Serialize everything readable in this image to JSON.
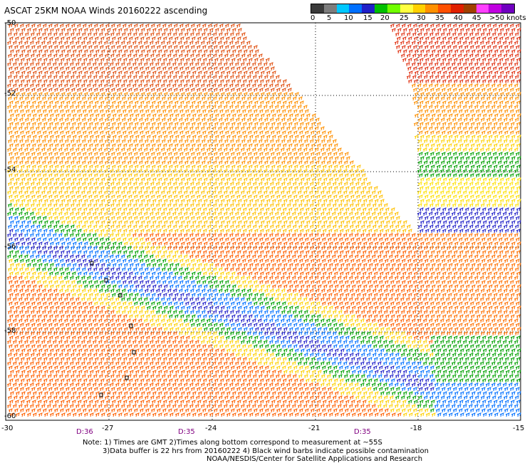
{
  "title": "ASCAT 25KM NOAA Winds 20160222 ascending",
  "colorbar": {
    "colors": [
      "#3a3a3a",
      "#7d7d7d",
      "#00c8ff",
      "#0070ff",
      "#2020c8",
      "#00c000",
      "#70ff00",
      "#ffff40",
      "#ffd000",
      "#ff9000",
      "#ff5000",
      "#e02000",
      "#a04000",
      "#ff40ff",
      "#c000e0",
      "#7000c0"
    ],
    "labels": [
      "0",
      "5",
      "10",
      "15",
      "20",
      "25",
      "30",
      "35",
      "40",
      "45",
      ">50 knots"
    ]
  },
  "lat_labels": [
    "-50",
    "-52",
    "-54",
    "-56",
    "-58",
    "-60"
  ],
  "lon_labels": [
    "-30",
    "-27",
    "-24",
    "-21",
    "-18",
    "-15"
  ],
  "time_labels": [
    "D:36",
    "D:35",
    "D:35"
  ],
  "notes": [
    "Note: 1) Times are GMT 2)Times along bottom correspond to measurement at ~55S",
    "3)Data buffer is 22 hrs from 20160222 4) Black wind barbs indicate possible contamination",
    "NOAA/NESDIS/Center for Satellite Applications and Research"
  ]
}
